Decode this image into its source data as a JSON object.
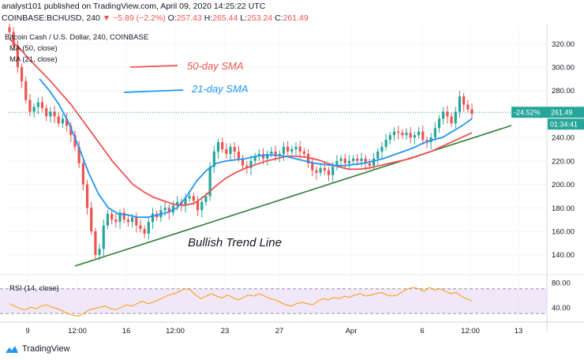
{
  "header": {
    "line1": "analyst101 published on TradingView.com, April 09, 2020 14:25:22 UTC",
    "symbol": "COINBASE:BCHUSD, 240",
    "change": "▼ −5.89 (−2.2%)",
    "open_label": "O:",
    "open": "257.43",
    "high_label": "H:",
    "high": "265.44",
    "low_label": "L:",
    "low": "253.24",
    "close_label": "C:",
    "close": "261.49"
  },
  "footer": {
    "brand": "TradingView"
  },
  "colors": {
    "sma50": "#ef5350",
    "sma21": "#2196f3",
    "trend": "#2e7d32",
    "candle_up": "#26a69a",
    "candle_down": "#ef5350",
    "rsi": "#ff9800",
    "rsi_band": "#e9ddf7",
    "price_line": "#26a69a"
  },
  "chart_data": [
    {
      "type": "line",
      "title": "Bitcoin Cash / U.S. Dollar, 240, COINBASE",
      "legend": [
        "MA (50, close)",
        "MA (21, close)"
      ],
      "annotations": {
        "sma50_label": "50-day SMA",
        "sma21_label": "21-day SMA",
        "trend_label": "Bullish Trend Line"
      },
      "ylim": [
        125,
        335
      ],
      "y_ticks": [
        "320.00",
        "300.00",
        "280.00",
        "260.00",
        "240.00",
        "220.00",
        "200.00",
        "180.00",
        "160.00",
        "140.00"
      ],
      "x_ticks": [
        "9",
        "12:00",
        "16",
        "12:00",
        "23",
        "27",
        "Apr",
        "6",
        "12:00",
        "13"
      ],
      "last_price_tag": {
        "price": "261.49",
        "change_text": "-24.52%",
        "countdown": "01:34:41"
      },
      "price": [
        330,
        318,
        300,
        288,
        272,
        262,
        266,
        270,
        265,
        258,
        262,
        258,
        252,
        256,
        250,
        242,
        232,
        218,
        200,
        180,
        160,
        140,
        145,
        165,
        175,
        170,
        168,
        176,
        170,
        168,
        172,
        165,
        162,
        158,
        168,
        175,
        172,
        178,
        180,
        176,
        182,
        185,
        182,
        188,
        190,
        186,
        178,
        185,
        190,
        215,
        228,
        236,
        230,
        226,
        232,
        228,
        222,
        216,
        214,
        220,
        224,
        226,
        222,
        226,
        228,
        224,
        226,
        232,
        228,
        230,
        232,
        228,
        226,
        218,
        212,
        210,
        214,
        212,
        208,
        215,
        220,
        222,
        218,
        220,
        222,
        220,
        222,
        218,
        216,
        222,
        228,
        232,
        238,
        242,
        245,
        244,
        242,
        244,
        240,
        242,
        245,
        238,
        236,
        240,
        248,
        256,
        262,
        258,
        252,
        262,
        275,
        268,
        264,
        260
      ],
      "sma50": [
        324,
        316,
        306,
        297,
        288,
        278,
        268,
        256,
        244,
        232,
        220,
        210,
        200,
        194,
        189,
        186,
        183,
        182,
        184,
        190,
        198,
        205,
        210,
        214,
        217,
        220,
        222,
        224,
        224,
        223,
        221,
        218,
        215,
        213,
        213,
        214,
        216,
        218,
        220,
        222,
        225,
        228,
        232,
        236,
        240,
        244
      ],
      "sma21": [
        290,
        280,
        268,
        252,
        232,
        210,
        192,
        180,
        175,
        174,
        172,
        172,
        174,
        176,
        180,
        190,
        203,
        212,
        218,
        220,
        221,
        222,
        224,
        225,
        225,
        224,
        222,
        220,
        218,
        217,
        216,
        216,
        217,
        218,
        220,
        222,
        225,
        228,
        231,
        235,
        238,
        240,
        245,
        250,
        256
      ],
      "trendline": [
        [
          0,
          135
        ],
        [
          1,
          250
        ]
      ]
    },
    {
      "type": "line",
      "title": "RSI (14, close)",
      "ylim": [
        20,
        90
      ],
      "y_ticks": [
        "80.00",
        "40.00"
      ],
      "band": [
        30,
        70
      ],
      "values": [
        46,
        42,
        38,
        36,
        40,
        38,
        42,
        44,
        40,
        38,
        34,
        30,
        27,
        26,
        30,
        36,
        38,
        40,
        42,
        38,
        36,
        40,
        44,
        42,
        46,
        50,
        46,
        48,
        52,
        56,
        60,
        62,
        66,
        70,
        68,
        60,
        54,
        58,
        62,
        58,
        55,
        60,
        56,
        52,
        56,
        60,
        58,
        62,
        58,
        54,
        52,
        48,
        44,
        42,
        46,
        48,
        46,
        44,
        50,
        54,
        52,
        56,
        54,
        58,
        56,
        60,
        62,
        58,
        60,
        62,
        64,
        60,
        58,
        60,
        66,
        70,
        72,
        70,
        66,
        72,
        68,
        70,
        66,
        62,
        64,
        58,
        54,
        50
      ]
    }
  ]
}
